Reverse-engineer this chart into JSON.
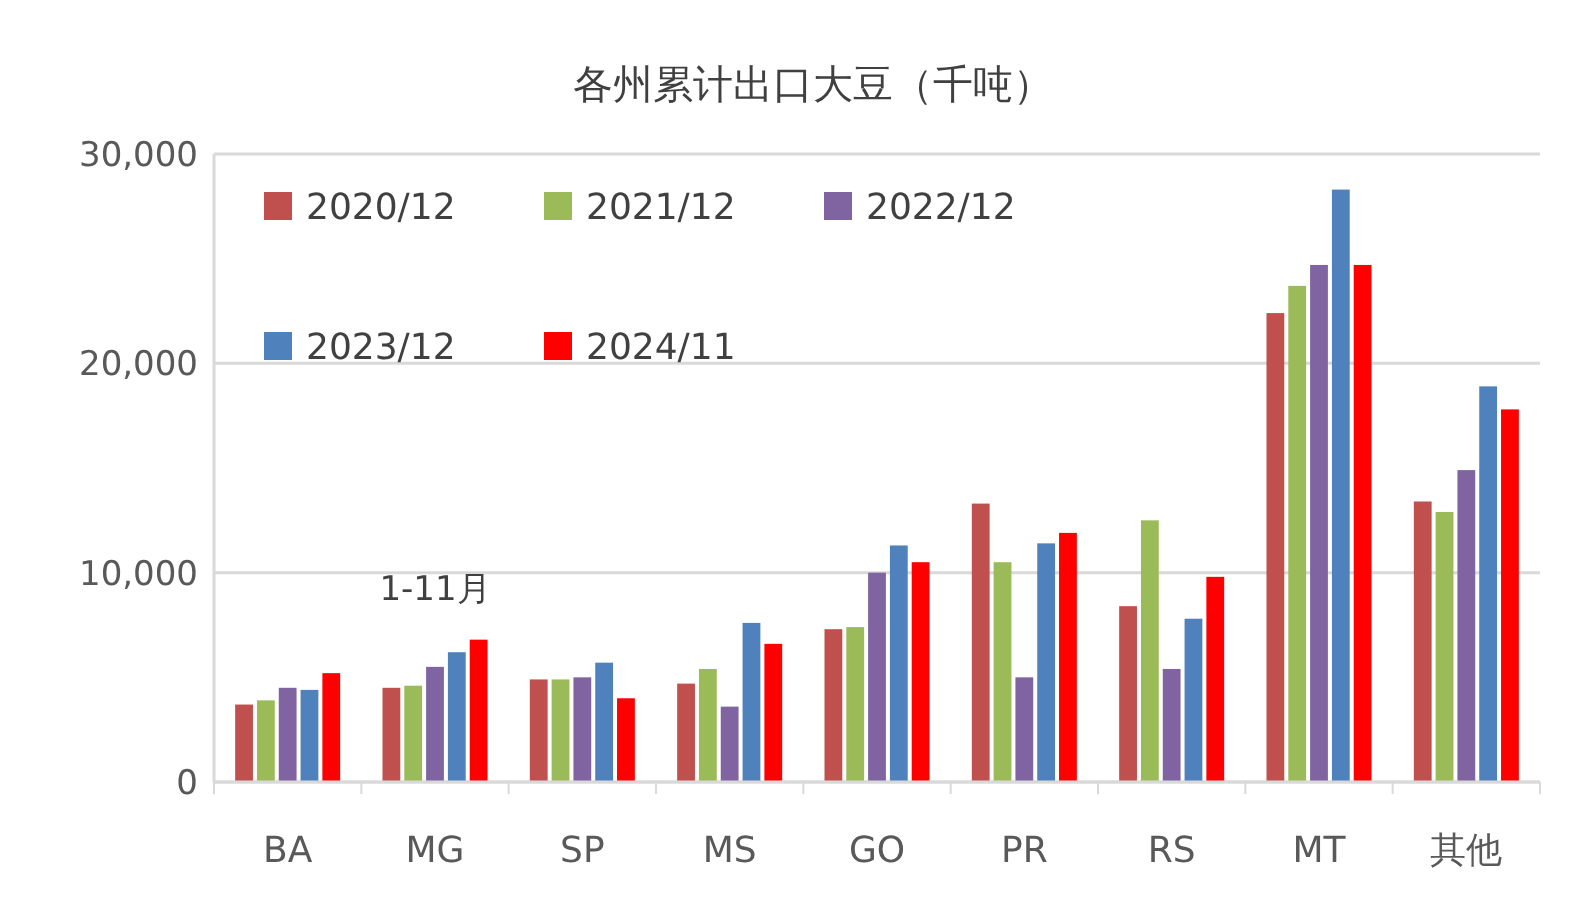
{
  "chart_data": {
    "type": "bar",
    "title": "各州累计出口大豆（千吨）",
    "categories": [
      "BA",
      "MG",
      "SP",
      "MS",
      "GO",
      "PR",
      "RS",
      "MT",
      "其他"
    ],
    "series": [
      {
        "name": "2020/12",
        "color": "#c0504d",
        "values": [
          3700,
          4500,
          4900,
          4700,
          7300,
          13300,
          8400,
          22400,
          13400
        ]
      },
      {
        "name": "2021/12",
        "color": "#9bbb59",
        "values": [
          3900,
          4600,
          4900,
          5400,
          7400,
          10500,
          12500,
          23700,
          12900
        ]
      },
      {
        "name": "2022/12",
        "color": "#8064a2",
        "values": [
          4500,
          5500,
          5000,
          3600,
          10000,
          5000,
          5400,
          24700,
          14900
        ]
      },
      {
        "name": "2023/12",
        "color": "#4f81bd",
        "values": [
          4400,
          6200,
          5700,
          7600,
          11300,
          11400,
          7800,
          28300,
          18900
        ]
      },
      {
        "name": "2024/11",
        "color": "#ff0000",
        "values": [
          5200,
          6800,
          4000,
          6600,
          10500,
          11900,
          9800,
          24700,
          17800
        ]
      }
    ],
    "ylim": [
      0,
      30000
    ],
    "yticks": [
      0,
      {
        "value": 10000,
        "label": "10,000"
      },
      {
        "value": 20000,
        "label": "20,000"
      },
      {
        "value": 30000,
        "label": "30,000"
      }
    ],
    "grid": "y",
    "legend": "top left",
    "annotations": [
      "1-11月"
    ]
  }
}
